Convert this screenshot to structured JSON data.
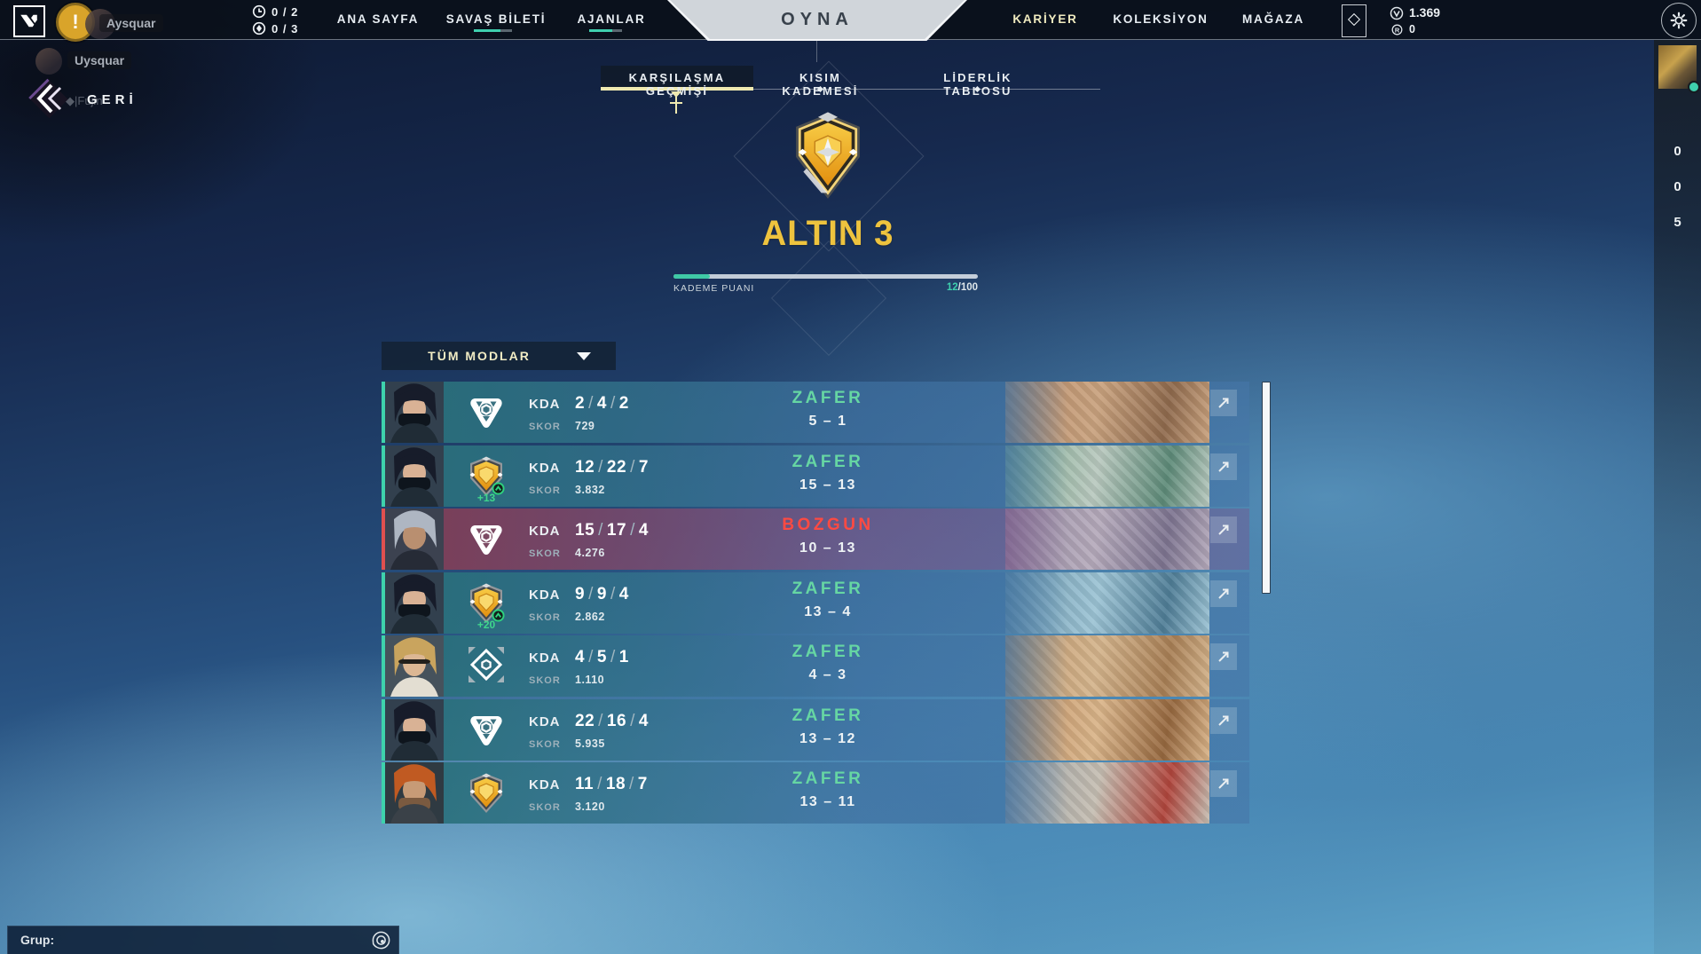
{
  "topbar": {
    "missions": [
      {
        "value": "0 / 2"
      },
      {
        "value": "0 / 3"
      }
    ],
    "nav_left": [
      {
        "label": "ANA SAYFA"
      },
      {
        "label": "SAVAŞ BİLETİ"
      },
      {
        "label": "AJANLAR"
      }
    ],
    "play_label": "OYNA",
    "nav_right": [
      {
        "label": "KARİYER"
      },
      {
        "label": "KOLEKSİYON"
      },
      {
        "label": "MAĞAZA"
      }
    ],
    "currencies": {
      "vp": "1.369",
      "rp": "0"
    }
  },
  "overlay": {
    "top_name": "Aysquar",
    "side_name": "Uysquar",
    "faded_name": "◆|Fujin",
    "alert": "!"
  },
  "back_label": "GERİ",
  "tabs": [
    {
      "label": "KARŞILAŞMA GEÇMİŞİ",
      "active": true
    },
    {
      "label": "KISIM KADEMESİ",
      "active": false
    },
    {
      "label": "LİDERLİK TABLOSU",
      "active": false
    }
  ],
  "rank": {
    "name": "ALTIN 3",
    "progress_label": "KADEME PUANI",
    "progress_current": "12",
    "progress_separator": "/",
    "progress_max": "100",
    "progress_percent": 12
  },
  "filter_label": "TÜM MODLAR",
  "labels": {
    "kda": "KDA",
    "skor": "SKOR"
  },
  "theme": {
    "accent_win": "#3ed2ac",
    "accent_loss": "#e0504f",
    "result_win": "#66d6a3",
    "result_loss": "#ff4a42",
    "gold": "#eec33e",
    "tab_underline": "#efe9b0",
    "progress_fill": "#3fc9a6"
  },
  "matches": [
    {
      "kills": "2",
      "deaths": "4",
      "assists": "2",
      "score_value": "729",
      "result": "ZAFER",
      "result_type": "win",
      "match_score": "5 – 1",
      "colors": {
        "accent": "#3ed2ac",
        "bg1": "rgba(40,112,120,.95)",
        "bg2": "rgba(62,112,160,.72)",
        "bg3": "rgba(70,118,168,.6)",
        "iconbg": "#3a7180",
        "m1": "#b98c6a",
        "m2": "#c9a27e",
        "m3": "#8f6a4d",
        "abg": "#32404e",
        "hair": "#171c2a",
        "skin": "#d9b295",
        "suit": "#202c36",
        "acc": "#0e151d",
        "accy": "36px",
        "acch": "14px"
      }
    },
    {
      "kills": "12",
      "deaths": "22",
      "assists": "7",
      "score_value": "3.832",
      "result": "ZAFER",
      "result_type": "win",
      "match_score": "15 – 13",
      "rank_delta": "+13",
      "colors": {
        "accent": "#3ed2ac",
        "bg1": "rgba(40,112,120,.95)",
        "bg2": "rgba(62,112,160,.72)",
        "bg3": "rgba(70,118,168,.6)",
        "iconbg": "#3a7180",
        "m1": "#7ba98d",
        "m2": "#b9c9bf",
        "m3": "#5d8a78",
        "abg": "#32404e",
        "hair": "#171c2a",
        "skin": "#d9b295",
        "suit": "#202c36",
        "acc": "#0e151d",
        "accy": "36px",
        "acch": "14px"
      }
    },
    {
      "kills": "15",
      "deaths": "17",
      "assists": "4",
      "score_value": "4.276",
      "result": "BOZGUN",
      "result_type": "loss",
      "match_score": "10 – 13",
      "colors": {
        "accent": "#e0504f",
        "bg1": "rgba(130,60,82,.95)",
        "bg2": "rgba(120,88,138,.7)",
        "bg3": "rgba(110,95,150,.55)",
        "iconbg": "#7d4b64",
        "m1": "#9a8fa6",
        "m2": "#b5aabb",
        "m3": "#7d7490",
        "abg": "#3c4250",
        "hair": "#aeb6c2",
        "skin": "#b98f70",
        "suit": "#262b36",
        "acc": "transparent",
        "accy": "36px",
        "acch": "10px"
      }
    },
    {
      "kills": "9",
      "deaths": "9",
      "assists": "4",
      "score_value": "2.862",
      "result": "ZAFER",
      "result_type": "win",
      "match_score": "13 – 4",
      "rank_delta": "+20",
      "colors": {
        "accent": "#3ed2ac",
        "bg1": "rgba(40,112,120,.95)",
        "bg2": "rgba(62,112,160,.72)",
        "bg3": "rgba(70,118,168,.6)",
        "iconbg": "#3a7180",
        "m1": "#6e9ab0",
        "m2": "#9cc3d4",
        "m3": "#4f7d96",
        "abg": "#32404e",
        "hair": "#171c2a",
        "skin": "#d9b295",
        "suit": "#202c36",
        "acc": "#0e151d",
        "accy": "36px",
        "acch": "14px"
      }
    },
    {
      "kills": "4",
      "deaths": "5",
      "assists": "1",
      "score_value": "1.110",
      "result": "ZAFER",
      "result_type": "win",
      "match_score": "4 – 3",
      "colors": {
        "accent": "#3ed2ac",
        "bg1": "rgba(40,112,120,.95)",
        "bg2": "rgba(62,112,160,.72)",
        "bg3": "rgba(70,118,168,.6)",
        "iconbg": "#3a7180",
        "m1": "#c2996f",
        "m2": "#d4b48c",
        "m3": "#a87f55",
        "abg": "#46525c",
        "hair": "#c9a45e",
        "skin": "#dcb794",
        "suit": "#e3ded2",
        "acc": "#23201c",
        "accy": "27px",
        "acch": "5px"
      }
    },
    {
      "kills": "22",
      "deaths": "16",
      "assists": "4",
      "score_value": "5.935",
      "result": "ZAFER",
      "result_type": "win",
      "match_score": "13 – 12",
      "colors": {
        "accent": "#3ed2ac",
        "bg1": "rgba(40,112,120,.95)",
        "bg2": "rgba(62,112,160,.72)",
        "bg3": "rgba(70,118,168,.6)",
        "iconbg": "#3a7180",
        "m1": "#bf8e62",
        "m2": "#d9b489",
        "m3": "#96683f",
        "abg": "#32404e",
        "hair": "#171c2a",
        "skin": "#d9b295",
        "suit": "#202c36",
        "acc": "#0e151d",
        "accy": "36px",
        "acch": "14px"
      }
    },
    {
      "kills": "11",
      "deaths": "18",
      "assists": "7",
      "score_value": "3.120",
      "result": "ZAFER",
      "result_type": "win",
      "match_score": "13 – 11",
      "colors": {
        "accent": "#3ed2ac",
        "bg1": "rgba(40,112,120,.95)",
        "bg2": "rgba(62,112,160,.72)",
        "bg3": "rgba(70,118,168,.6)",
        "iconbg": "#3a7180",
        "m1": "#9aa0a4",
        "m2": "#c5beb2",
        "m3": "#b0453c",
        "abg": "#2f3a42",
        "hair": "#c05a22",
        "skin": "#c79b77",
        "suit": "#3a4148",
        "acc": "#7a5a40",
        "accy": "40px",
        "acch": "14px"
      }
    }
  ],
  "social": {
    "counts": [
      "0",
      "0",
      "5"
    ]
  },
  "party": {
    "label": "Grup:"
  }
}
